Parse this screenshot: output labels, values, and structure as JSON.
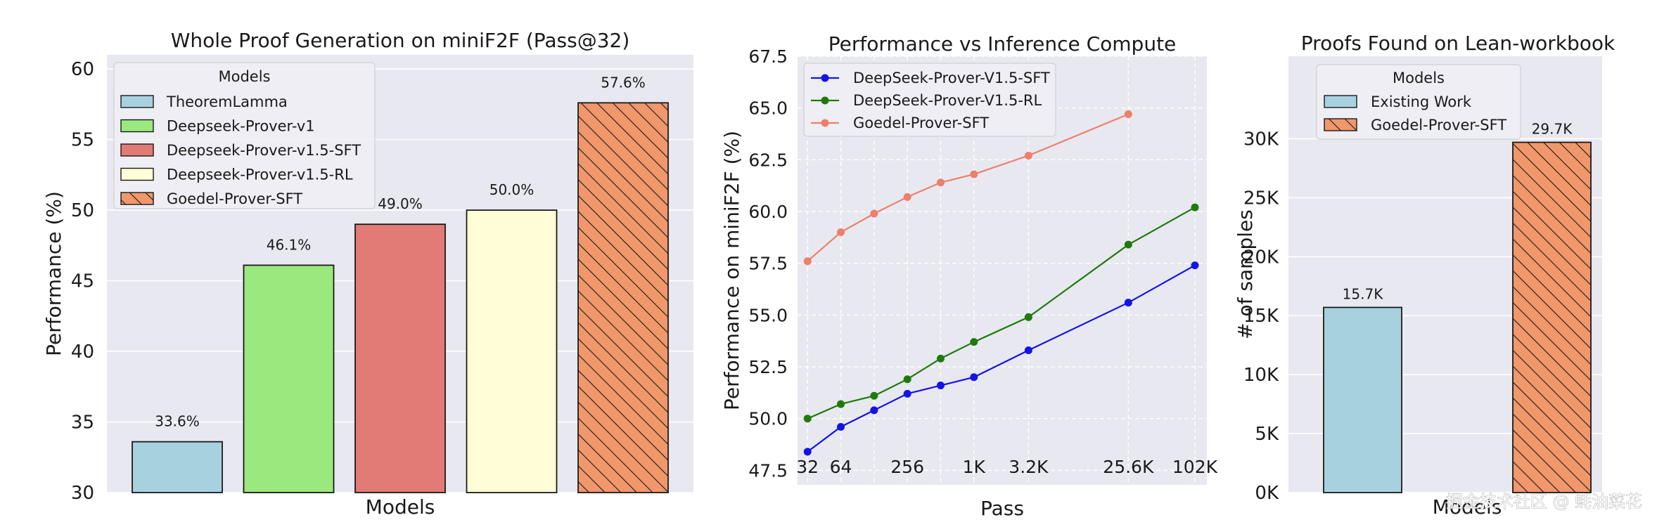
{
  "chart_data": [
    {
      "type": "bar",
      "title": "Whole Proof Generation on miniF2F (Pass@32)",
      "xlabel": "Models",
      "ylabel": "Performance (%)",
      "ylim": [
        30,
        61
      ],
      "yticks": [
        30,
        35,
        40,
        45,
        50,
        55,
        60
      ],
      "categories": [
        "TheoremLamma",
        "Deepseek-Prover-v1",
        "Deepseek-Prover-v1.5-SFT",
        "Deepseek-Prover-v1.5-RL",
        "Goedel-Prover-SFT"
      ],
      "values": [
        33.6,
        46.1,
        49.0,
        50.0,
        57.6
      ],
      "value_labels": [
        "33.6%",
        "46.1%",
        "49.0%",
        "50.0%",
        "57.6%"
      ],
      "colors": [
        "#a8d1e0",
        "#9ae87e",
        "#e27a76",
        "#fffed6",
        "#f0976b"
      ],
      "hatched": [
        false,
        false,
        false,
        false,
        true
      ],
      "legend_title": "Models",
      "legend_position": "top-left"
    },
    {
      "type": "line",
      "title": "Performance vs Inference Compute",
      "xlabel": "Pass",
      "ylabel": "Performance on miniF2F (%)",
      "ylim": [
        46.8,
        67.5
      ],
      "yticks": [
        47.5,
        50.0,
        52.5,
        55.0,
        57.5,
        60.0,
        62.5,
        65.0,
        67.5
      ],
      "ytick_labels": [
        "47.5",
        "50.0",
        "52.5",
        "55.0",
        "57.5",
        "60.0",
        "62.5",
        "65.0",
        "67.5"
      ],
      "x_log2": [
        5,
        6,
        7,
        8,
        9,
        10,
        11.64,
        14.64,
        16.64
      ],
      "xtick_positions": [
        5,
        6,
        8,
        10,
        11.64,
        14.64,
        16.64
      ],
      "xtick_labels": [
        "32",
        "64",
        "256",
        "1K",
        "3.2K",
        "25.6K",
        "102K"
      ],
      "series": [
        {
          "name": "DeepSeek-Prover-V1.5-SFT",
          "color": "#1414e6",
          "x_log2": [
            5,
            6,
            7,
            8,
            9,
            10,
            11.64,
            14.64,
            16.64
          ],
          "values": [
            48.4,
            49.6,
            50.4,
            51.2,
            51.6,
            52.0,
            53.3,
            55.6,
            57.4
          ]
        },
        {
          "name": "DeepSeek-Prover-V1.5-RL",
          "color": "#1f7a0c",
          "x_log2": [
            5,
            6,
            7,
            8,
            9,
            10,
            11.64,
            14.64,
            16.64
          ],
          "values": [
            50.0,
            50.7,
            51.1,
            51.9,
            52.9,
            53.7,
            54.9,
            58.4,
            60.2
          ]
        },
        {
          "name": "Goedel-Prover-SFT",
          "color": "#ec8068",
          "x_log2": [
            5,
            6,
            7,
            8,
            9,
            10,
            11.64,
            14.64
          ],
          "values": [
            57.6,
            59.0,
            59.9,
            60.7,
            61.4,
            61.8,
            62.7,
            64.7
          ]
        }
      ],
      "legend_position": "top-left"
    },
    {
      "type": "bar",
      "title": "Proofs Found on Lean-workbook",
      "xlabel": "Models",
      "ylabel": "# of samples",
      "ylim": [
        0,
        37000
      ],
      "yticks": [
        0,
        5000,
        10000,
        15000,
        20000,
        25000,
        30000
      ],
      "ytick_labels": [
        "0K",
        "5K",
        "10K",
        "15K",
        "20K",
        "25K",
        "30K"
      ],
      "categories": [
        "Existing Work",
        "Goedel-Prover-SFT"
      ],
      "values": [
        15700,
        29700
      ],
      "value_labels": [
        "15.7K",
        "29.7K"
      ],
      "colors": [
        "#a8d1e0",
        "#f0976b"
      ],
      "hatched": [
        false,
        true
      ],
      "legend_title": "Models",
      "legend_position": "top-left"
    }
  ],
  "watermark": "掘金技术社区 @ 蚝油菜花"
}
